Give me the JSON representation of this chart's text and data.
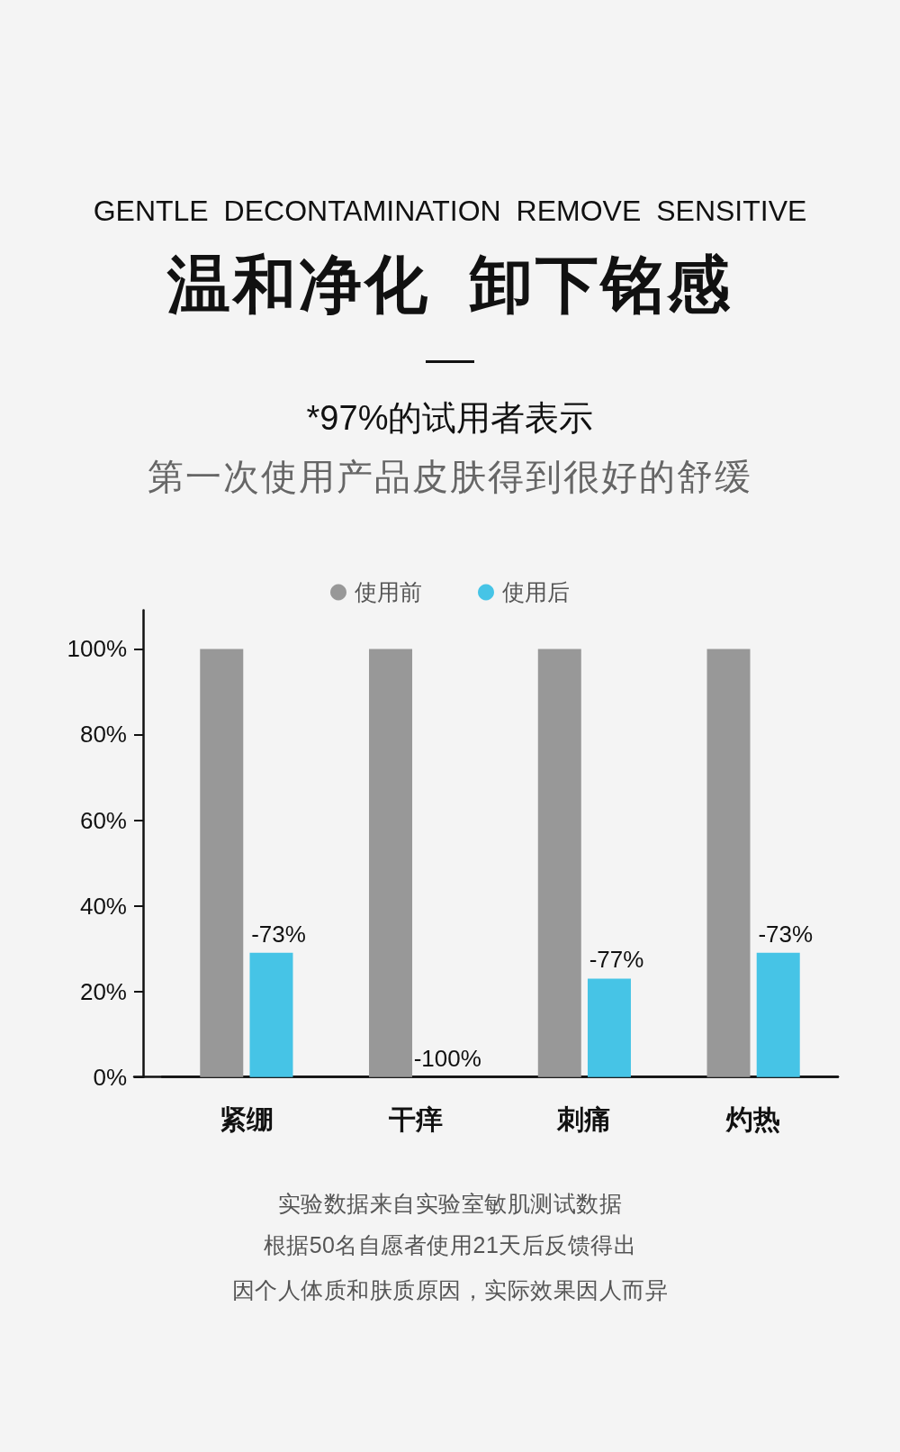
{
  "chart_data": {
    "type": "bar",
    "subtitle": "GENTLE DECONTAMINATION REMOVE SENSITIVE",
    "title": "温和净化  卸下铭感",
    "annotations": [
      "*97%的试用者表示",
      "第一次使用产品皮肤得到很好的舒缓",
      {
        "text": "-73%",
        "x": "紧绷",
        "y": 29
      },
      {
        "text": "-100%",
        "x": "干痒",
        "y": 0
      },
      {
        "text": "-77%",
        "x": "刺痛",
        "y": 23
      },
      {
        "text": "-73%",
        "x": "灼热",
        "y": 29
      },
      "实验数据来自实验室敏肌测试数据",
      "根据50名自愿者使用21天后反馈得出",
      "因个人体质和肤质原因，实际效果因人而异"
    ],
    "categories": [
      "紧绷",
      "干痒",
      "刺痛",
      "灼热"
    ],
    "series": [
      {
        "name": "使用前",
        "color": "#989898",
        "values": [
          100,
          100,
          100,
          100
        ]
      },
      {
        "name": "使用后",
        "color": "#46c4e6",
        "values": [
          29,
          0,
          23,
          29
        ]
      }
    ],
    "ylim": [
      0,
      109
    ],
    "yticks": [
      {
        "value": 0,
        "label": "0%"
      },
      {
        "value": 20,
        "label": "20%"
      },
      {
        "value": 40,
        "label": "40%"
      },
      {
        "value": 60,
        "label": "60%"
      },
      {
        "value": 80,
        "label": "80%"
      },
      {
        "value": 100,
        "label": "100%"
      }
    ],
    "legend": "top"
  }
}
